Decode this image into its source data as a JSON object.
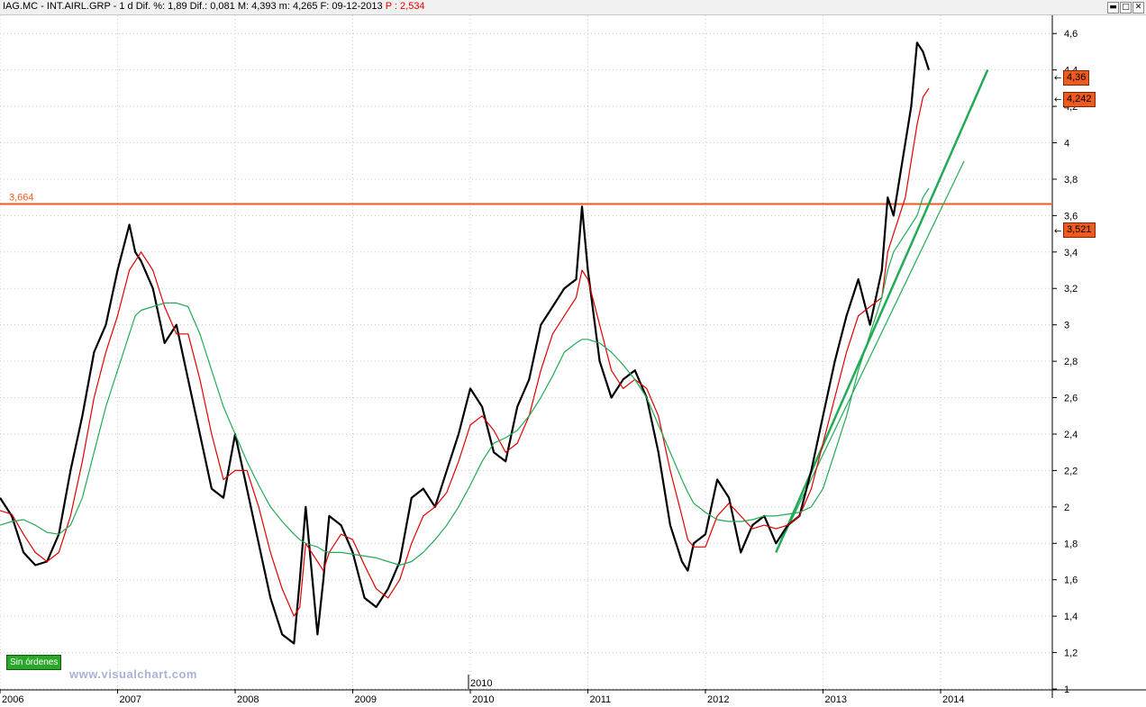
{
  "window": {
    "title_main": "IAG.MC - INT.AIRL.GRP - 1 d  Dif. %: 1,89  Dif.: 0,081  M: 4,393  m: 4,265  F: 09-12-2013",
    "title_p": "P : 2,534",
    "btn_minimize": "▬",
    "btn_maximize": "□",
    "btn_close": "✕"
  },
  "badges": {
    "orders": "Sin órdenes",
    "watermark": "www.visualchart.com",
    "year_marker": "2010"
  },
  "colors": {
    "price": "#000000",
    "ma_fast": "#e00000",
    "ma_slow": "#22aa55",
    "resistance": "#f05a1e",
    "trendline": "#22aa55",
    "grid": "#c8c8c8"
  },
  "chart_data": {
    "type": "line",
    "ylim": [
      1.0,
      4.7
    ],
    "y_ticks": [
      "1",
      "1,2",
      "1,4",
      "1,6",
      "1,8",
      "2",
      "2,2",
      "2,4",
      "2,6",
      "2,8",
      "3",
      "3,2",
      "3,4",
      "3,6",
      "3,8",
      "4",
      "4,2",
      "4,4",
      "4,6"
    ],
    "x_ticks": [
      "2006",
      "2007",
      "2008",
      "2009",
      "2010",
      "2011",
      "2012",
      "2013",
      "2014"
    ],
    "grid": true,
    "x": [
      2006.0,
      2006.1,
      2006.2,
      2006.3,
      2006.4,
      2006.5,
      2006.6,
      2006.7,
      2006.8,
      2006.9,
      2007.0,
      2007.1,
      2007.15,
      2007.2,
      2007.3,
      2007.4,
      2007.5,
      2007.6,
      2007.7,
      2007.8,
      2007.9,
      2008.0,
      2008.1,
      2008.2,
      2008.3,
      2008.4,
      2008.5,
      2008.55,
      2008.6,
      2008.7,
      2008.75,
      2008.8,
      2008.9,
      2009.0,
      2009.1,
      2009.2,
      2009.3,
      2009.4,
      2009.5,
      2009.6,
      2009.7,
      2009.8,
      2009.9,
      2010.0,
      2010.1,
      2010.2,
      2010.3,
      2010.4,
      2010.5,
      2010.6,
      2010.7,
      2010.8,
      2010.9,
      2010.95,
      2011.0,
      2011.1,
      2011.2,
      2011.3,
      2011.4,
      2011.5,
      2011.6,
      2011.7,
      2011.8,
      2011.85,
      2011.9,
      2012.0,
      2012.1,
      2012.2,
      2012.3,
      2012.4,
      2012.5,
      2012.6,
      2012.7,
      2012.8,
      2012.9,
      2013.0,
      2013.1,
      2013.2,
      2013.3,
      2013.4,
      2013.5,
      2013.55,
      2013.6,
      2013.7,
      2013.75,
      2013.8,
      2013.85,
      2013.9
    ],
    "series": [
      {
        "values": [
          2.05,
          1.95,
          1.75,
          1.68,
          1.7,
          1.85,
          2.2,
          2.5,
          2.85,
          3.0,
          3.3,
          3.55,
          3.4,
          3.35,
          3.2,
          2.9,
          3.0,
          2.7,
          2.4,
          2.1,
          2.05,
          2.4,
          2.1,
          1.8,
          1.5,
          1.3,
          1.25,
          1.6,
          2.0,
          1.3,
          1.6,
          1.95,
          1.9,
          1.75,
          1.5,
          1.45,
          1.55,
          1.7,
          2.05,
          2.1,
          2.0,
          2.2,
          2.4,
          2.65,
          2.55,
          2.3,
          2.25,
          2.55,
          2.7,
          3.0,
          3.1,
          3.2,
          3.25,
          3.65,
          3.3,
          2.8,
          2.6,
          2.7,
          2.75,
          2.6,
          2.3,
          1.9,
          1.7,
          1.65,
          1.8,
          1.85,
          2.15,
          2.05,
          1.75,
          1.9,
          1.95,
          1.8,
          1.9,
          1.95,
          2.2,
          2.5,
          2.8,
          3.05,
          3.25,
          3.0,
          3.3,
          3.7,
          3.6,
          4.0,
          4.2,
          4.55,
          4.5,
          4.4
        ]
      },
      {
        "values": [
          1.98,
          1.96,
          1.85,
          1.75,
          1.7,
          1.75,
          1.95,
          2.25,
          2.6,
          2.85,
          3.05,
          3.3,
          3.35,
          3.4,
          3.3,
          3.1,
          2.95,
          2.95,
          2.7,
          2.4,
          2.15,
          2.2,
          2.2,
          2.0,
          1.75,
          1.55,
          1.4,
          1.45,
          1.8,
          1.7,
          1.65,
          1.75,
          1.85,
          1.82,
          1.68,
          1.55,
          1.5,
          1.6,
          1.8,
          1.95,
          2.0,
          2.08,
          2.25,
          2.45,
          2.5,
          2.42,
          2.3,
          2.35,
          2.5,
          2.75,
          2.95,
          3.05,
          3.15,
          3.3,
          3.25,
          3.0,
          2.75,
          2.65,
          2.7,
          2.65,
          2.5,
          2.2,
          1.95,
          1.82,
          1.78,
          1.78,
          1.95,
          2.02,
          1.95,
          1.88,
          1.9,
          1.88,
          1.9,
          1.95,
          2.1,
          2.35,
          2.6,
          2.85,
          3.05,
          3.1,
          3.15,
          3.4,
          3.5,
          3.7,
          3.9,
          4.1,
          4.25,
          4.3
        ]
      },
      {
        "values": [
          1.9,
          1.92,
          1.93,
          1.9,
          1.86,
          1.85,
          1.9,
          2.05,
          2.3,
          2.55,
          2.75,
          2.95,
          3.05,
          3.08,
          3.1,
          3.12,
          3.12,
          3.1,
          2.95,
          2.75,
          2.55,
          2.4,
          2.25,
          2.12,
          2.0,
          1.92,
          1.85,
          1.82,
          1.8,
          1.78,
          1.76,
          1.75,
          1.75,
          1.74,
          1.73,
          1.72,
          1.7,
          1.68,
          1.7,
          1.75,
          1.82,
          1.9,
          2.0,
          2.12,
          2.25,
          2.35,
          2.38,
          2.42,
          2.5,
          2.6,
          2.72,
          2.85,
          2.9,
          2.92,
          2.92,
          2.9,
          2.85,
          2.78,
          2.7,
          2.6,
          2.45,
          2.3,
          2.15,
          2.08,
          2.02,
          1.97,
          1.93,
          1.92,
          1.92,
          1.93,
          1.95,
          1.95,
          1.96,
          1.97,
          2.0,
          2.1,
          2.3,
          2.5,
          2.75,
          2.95,
          3.15,
          3.3,
          3.4,
          3.5,
          3.55,
          3.6,
          3.7,
          3.75
        ]
      }
    ],
    "resistance": {
      "label": "3,664",
      "value": 3.664
    },
    "trendlines": [
      {
        "x": [
          2012.6,
          2014.4
        ],
        "y": [
          1.75,
          4.4
        ]
      },
      {
        "x": [
          2012.6,
          2014.2
        ],
        "y": [
          1.75,
          3.9
        ]
      }
    ],
    "price_tags": [
      {
        "label": "4,36",
        "value": 4.36
      },
      {
        "label": "4,242",
        "value": 4.242
      },
      {
        "label": "3,521",
        "value": 3.521
      }
    ]
  }
}
